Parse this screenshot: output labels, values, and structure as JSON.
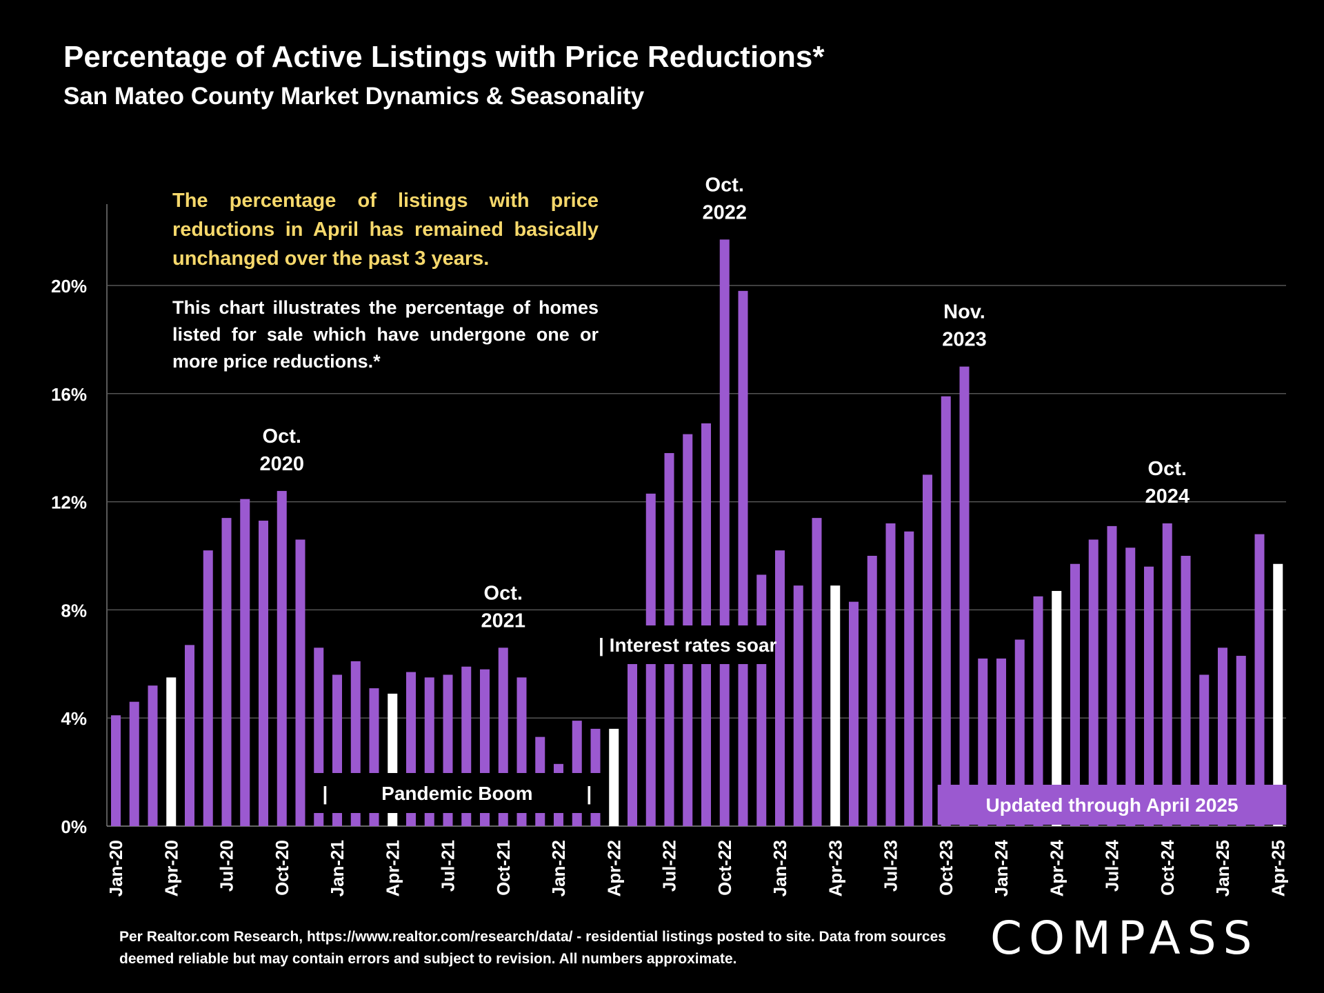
{
  "title": "Percentage of Active Listings with Price Reductions*",
  "subtitle": "San Mateo County Market Dynamics & Seasonality",
  "callout_yellow": "The percentage of listings with price reductions in April has remained basically unchanged over the past 3 years.",
  "callout_white": "This chart illustrates the percentage of homes listed for sale which have undergone one or more price reductions.*",
  "footnote": "Per Realtor.com Research, https://www.realtor.com/research/data/ - residential listings posted to site.  Data from sources deemed reliable but may contain errors and subject to revision. All numbers approximate.",
  "logo_text": "COMPASS",
  "colors": {
    "bar": "#9b59d0",
    "highlight": "#ffffff",
    "grid": "#555555",
    "callout": "#f6d86b",
    "band": "#9b59d0"
  },
  "chart_data": {
    "type": "bar",
    "ylabel": "",
    "xlabel": "",
    "ylim": [
      0,
      24
    ],
    "yticks": [
      "0%",
      "4%",
      "8%",
      "12%",
      "16%",
      "20%"
    ],
    "grid": true,
    "categories": [
      "Jan-20",
      "Feb-20",
      "Mar-20",
      "Apr-20",
      "May-20",
      "Jun-20",
      "Jul-20",
      "Aug-20",
      "Sep-20",
      "Oct-20",
      "Nov-20",
      "Dec-20",
      "Jan-21",
      "Feb-21",
      "Mar-21",
      "Apr-21",
      "May-21",
      "Jun-21",
      "Jul-21",
      "Aug-21",
      "Sep-21",
      "Oct-21",
      "Nov-21",
      "Dec-21",
      "Jan-22",
      "Feb-22",
      "Mar-22",
      "Apr-22",
      "May-22",
      "Jun-22",
      "Jul-22",
      "Aug-22",
      "Sep-22",
      "Oct-22",
      "Nov-22",
      "Dec-22",
      "Jan-23",
      "Feb-23",
      "Mar-23",
      "Apr-23",
      "May-23",
      "Jun-23",
      "Jul-23",
      "Aug-23",
      "Sep-23",
      "Oct-23",
      "Nov-23",
      "Dec-23",
      "Jan-24",
      "Feb-24",
      "Mar-24",
      "Apr-24",
      "May-24",
      "Jun-24",
      "Jul-24",
      "Aug-24",
      "Sep-24",
      "Oct-24",
      "Nov-24",
      "Dec-24",
      "Jan-25",
      "Feb-25",
      "Mar-25",
      "Apr-25"
    ],
    "x_tick_labels": [
      "Jan-20",
      "Apr-20",
      "Jul-20",
      "Oct-20",
      "Jan-21",
      "Apr-21",
      "Jul-21",
      "Oct-21",
      "Jan-22",
      "Apr-22",
      "Jul-22",
      "Oct-22",
      "Jan-23",
      "Apr-23",
      "Jul-23",
      "Oct-23",
      "Jan-24",
      "Apr-24",
      "Jul-24",
      "Oct-24",
      "Jan-25",
      "Apr-25"
    ],
    "values": [
      4.1,
      4.6,
      5.2,
      5.5,
      6.7,
      10.2,
      11.4,
      12.1,
      11.3,
      12.4,
      10.6,
      6.6,
      5.6,
      6.1,
      5.1,
      4.9,
      5.7,
      5.5,
      5.6,
      5.9,
      5.8,
      6.6,
      5.5,
      3.3,
      2.3,
      3.9,
      3.6,
      3.6,
      6.2,
      12.3,
      13.8,
      14.5,
      14.9,
      21.7,
      19.8,
      9.3,
      10.2,
      8.9,
      11.4,
      8.9,
      8.3,
      10.0,
      11.2,
      10.9,
      13.0,
      15.9,
      17.0,
      6.2,
      6.2,
      6.9,
      8.5,
      8.7,
      9.7,
      10.6,
      11.1,
      10.3,
      9.6,
      11.2,
      10.0,
      5.6,
      6.6,
      6.3,
      10.8,
      9.7
    ],
    "highlight_categories": [
      "Apr-20",
      "Apr-21",
      "Apr-22",
      "Apr-23",
      "Apr-24",
      "Apr-25"
    ],
    "annotations": [
      {
        "category": "Oct-20",
        "lines": [
          "Oct.",
          "2020"
        ]
      },
      {
        "category": "Oct-21",
        "lines": [
          "Oct.",
          "2021"
        ]
      },
      {
        "category": "Oct-22",
        "lines": [
          "Oct.",
          "2022"
        ]
      },
      {
        "category": "Nov-23",
        "lines": [
          "Nov.",
          "2023"
        ]
      },
      {
        "category": "Oct-24",
        "lines": [
          "Oct.",
          "2024"
        ]
      }
    ],
    "bands": [
      {
        "label": "|          Pandemic Boom          |",
        "from": "Dec-20",
        "to": "Mar-22"
      },
      {
        "label": "| Interest rates soar",
        "from": "Apr-22",
        "to": "Dec-22"
      },
      {
        "label": "Updated through April 2025",
        "from": "Oct-23",
        "to": "Apr-25"
      }
    ]
  }
}
